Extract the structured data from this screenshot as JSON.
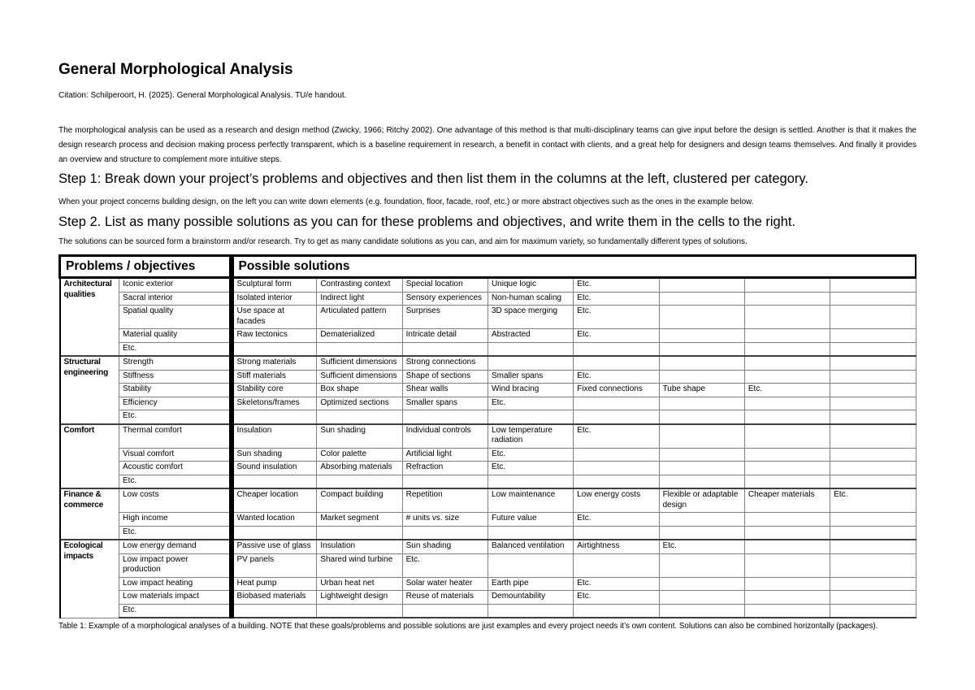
{
  "page": {
    "title": "General Morphological Analysis",
    "citation": "Citation: Schilperoort, H. (2025). General Morphological Analysis. TU/e handout.",
    "intro": "The morphological analysis can be used as a research and design method (Zwicky, 1966; Ritchy 2002). One advantage of this method is that multi-disciplinary teams can give input before the design is settled. Another is that it makes the design research process and decision making process perfectly transparent, which is a baseline requirement in research, a benefit in contact with clients, and a great help for designers and design teams themselves. And finally it provides an overview and structure to complement more intuitive steps.",
    "step1_heading": "Step 1: Break down your project’s problems and objectives and then list them in the columns at the left, clustered per category.",
    "step1_text": "When your project concerns building design, on the left you can write down elements (e.g. foundation, floor, facade, roof, etc.) or more abstract objectives such as the ones in the example below.",
    "step2_heading": "Step 2. List as many possible solutions as you can for these problems and objectives, and write them in the cells to the right.",
    "step2_text": "The solutions can be sourced form a brainstorm and/or research. Try to get as many candidate solutions as you can, and aim for maximum variety, so fundamentally different types of solutions.",
    "caption": "Table 1: Example of a morphological analyses of a building. NOTE that these goals/problems and possible solutions are just examples and every project needs it’s own content. Solutions can also be combined horizontally (packages)."
  },
  "table": {
    "header": {
      "problems": "Problems / objectives",
      "solutions": "Possible solutions"
    },
    "solution_columns": 8,
    "groups": [
      {
        "category": "Architectural qualities",
        "rows": [
          {
            "problem": "Iconic exterior",
            "solutions": [
              "Sculptural form",
              "Contrasting context",
              "Special location",
              "Unique logic",
              "Etc.",
              "",
              "",
              ""
            ]
          },
          {
            "problem": "Sacral interior",
            "solutions": [
              "Isolated interior",
              "Indirect light",
              "Sensory experiences",
              "Non-human scaling",
              "Etc.",
              "",
              "",
              ""
            ]
          },
          {
            "problem": "Spatial quality",
            "solutions": [
              "Use space at facades",
              "Articulated pattern",
              "Surprises",
              "3D space merging",
              "Etc.",
              "",
              "",
              ""
            ]
          },
          {
            "problem": "Material quality",
            "solutions": [
              "Raw tectonics",
              "Dematerialized",
              "Intricate detail",
              "Abstracted",
              "Etc.",
              "",
              "",
              ""
            ]
          },
          {
            "problem": "Etc.",
            "solutions": [
              "",
              "",
              "",
              "",
              "",
              "",
              "",
              ""
            ]
          }
        ]
      },
      {
        "category": "Structural engineering",
        "rows": [
          {
            "problem": "Strength",
            "solutions": [
              "Strong materials",
              "Sufficient dimensions",
              "Strong connections",
              "",
              "",
              "",
              "",
              ""
            ]
          },
          {
            "problem": "Stiffness",
            "solutions": [
              "Stiff materials",
              "Sufficient dimensions",
              "Shape of sections",
              "Smaller spans",
              "Etc.",
              "",
              "",
              ""
            ]
          },
          {
            "problem": "Stability",
            "solutions": [
              "Stability core",
              "Box shape",
              "Shear walls",
              "Wind bracing",
              "Fixed connections",
              "Tube shape",
              "Etc.",
              ""
            ]
          },
          {
            "problem": "Efficiency",
            "solutions": [
              "Skeletons/frames",
              "Optimized sections",
              "Smaller spans",
              "Etc.",
              "",
              "",
              "",
              ""
            ]
          },
          {
            "problem": "Etc.",
            "solutions": [
              "",
              "",
              "",
              "",
              "",
              "",
              "",
              ""
            ]
          }
        ]
      },
      {
        "category": "Comfort",
        "rows": [
          {
            "problem": "Thermal comfort",
            "solutions": [
              "Insulation",
              "Sun shading",
              "Individual controls",
              "Low temperature radiation",
              "Etc.",
              "",
              "",
              ""
            ]
          },
          {
            "problem": "Visual comfort",
            "solutions": [
              "Sun shading",
              "Color palette",
              "Artificial light",
              "Etc.",
              "",
              "",
              "",
              ""
            ]
          },
          {
            "problem": "Acoustic comfort",
            "solutions": [
              "Sound insulation",
              "Absorbing materials",
              "Refraction",
              "Etc.",
              "",
              "",
              "",
              ""
            ]
          },
          {
            "problem": "Etc.",
            "solutions": [
              "",
              "",
              "",
              "",
              "",
              "",
              "",
              ""
            ]
          }
        ]
      },
      {
        "category": "Finance & commerce",
        "rows": [
          {
            "problem": "Low costs",
            "solutions": [
              "Cheaper location",
              "Compact building",
              "Repetition",
              "Low maintenance",
              "Low energy costs",
              "Flexible or adaptable design",
              "Cheaper materials",
              "Etc."
            ]
          },
          {
            "problem": "High income",
            "solutions": [
              "Wanted location",
              "Market segment",
              "# units vs. size",
              "Future value",
              "Etc.",
              "",
              "",
              ""
            ]
          },
          {
            "problem": "Etc.",
            "solutions": [
              "",
              "",
              "",
              "",
              "",
              "",
              "",
              ""
            ]
          }
        ]
      },
      {
        "category": "Ecological impacts",
        "rows": [
          {
            "problem": "Low energy demand",
            "solutions": [
              "Passive use of glass",
              "Insulation",
              "Sun shading",
              "Balanced ventilation",
              "Airtightness",
              "Etc.",
              "",
              ""
            ]
          },
          {
            "problem": "Low impact power production",
            "solutions": [
              "PV panels",
              "Shared wind turbine",
              "Etc.",
              "",
              "",
              "",
              "",
              ""
            ]
          },
          {
            "problem": "Low impact heating",
            "solutions": [
              "Heat pump",
              "Urban heat net",
              "Solar water heater",
              "Earth pipe",
              "Etc.",
              "",
              "",
              ""
            ]
          },
          {
            "problem": "Low materials impact",
            "solutions": [
              "Biobased materials",
              "Lightweight design",
              "Reuse of materials",
              "Demountability",
              "Etc.",
              "",
              "",
              ""
            ]
          },
          {
            "problem": "Etc.",
            "solutions": [
              "",
              "",
              "",
              "",
              "",
              "",
              "",
              ""
            ]
          }
        ]
      }
    ]
  }
}
